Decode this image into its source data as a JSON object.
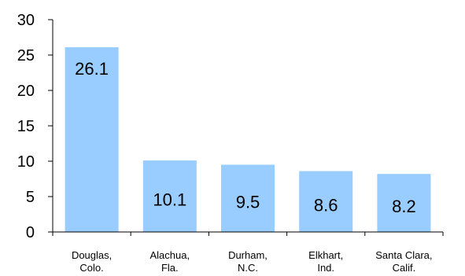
{
  "chart_data": {
    "type": "bar",
    "title": "",
    "xlabel": "",
    "ylabel": "",
    "ylim": [
      0,
      30
    ],
    "yticks": [
      "0",
      "5",
      "10",
      "15",
      "20",
      "25",
      "30"
    ],
    "categories": [
      [
        "Douglas,",
        "Colo."
      ],
      [
        "Alachua,",
        "Fla."
      ],
      [
        "Durham,",
        "N.C."
      ],
      [
        "Elkhart,",
        "Ind."
      ],
      [
        "Santa Clara,",
        "Calif."
      ]
    ],
    "values": [
      26.1,
      10.1,
      9.5,
      8.6,
      8.2
    ],
    "data_labels": [
      "26.1",
      "10.1",
      "9.5",
      "8.6",
      "8.2"
    ],
    "grid": false,
    "legend": "none",
    "colors": {
      "bar": "#99CCFF",
      "axis": "#000000",
      "text": "#000000"
    }
  }
}
